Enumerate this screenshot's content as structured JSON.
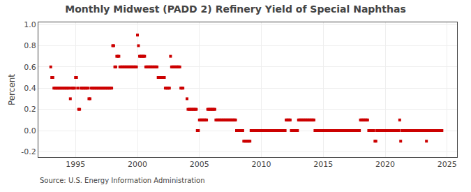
{
  "chart_data": {
    "type": "scatter",
    "title": "Monthly Midwest (PADD 2) Refinery Yield of Special Naphthas",
    "ylabel": "Percent",
    "annotations": [
      "Source: U.S. Energy Information Administration"
    ],
    "color": "#cc0000",
    "marker": "square",
    "grid": true,
    "xlim": [
      1992.0,
      2025.8
    ],
    "ylim": [
      -0.25,
      1.02
    ],
    "xticks": [
      1995,
      2000,
      2005,
      2010,
      2015,
      2020,
      2025
    ],
    "yticks": [
      -0.2,
      {
        "value": 0.0,
        "label": "0.0"
      },
      0.2,
      0.4,
      0.6,
      0.8,
      {
        "value": 1.0,
        "label": "1.0"
      }
    ],
    "x": [
      1993.0,
      1993.08,
      1993.17,
      1993.25,
      1993.33,
      1993.42,
      1993.5,
      1993.58,
      1993.67,
      1993.75,
      1993.83,
      1993.92,
      1994.0,
      1994.08,
      1994.17,
      1994.25,
      1994.33,
      1994.42,
      1994.5,
      1994.58,
      1994.67,
      1994.75,
      1994.83,
      1994.92,
      1995.0,
      1995.08,
      1995.17,
      1995.25,
      1995.33,
      1995.42,
      1995.5,
      1995.58,
      1995.67,
      1995.75,
      1995.83,
      1995.92,
      1996.0,
      1996.08,
      1996.17,
      1996.25,
      1996.33,
      1996.42,
      1996.5,
      1996.58,
      1996.67,
      1996.75,
      1996.83,
      1996.92,
      1997.0,
      1997.08,
      1997.17,
      1997.25,
      1997.33,
      1997.42,
      1997.5,
      1997.58,
      1997.67,
      1997.75,
      1997.83,
      1997.92,
      1998.0,
      1998.08,
      1998.17,
      1998.25,
      1998.33,
      1998.42,
      1998.5,
      1998.58,
      1998.67,
      1998.75,
      1998.83,
      1998.92,
      1999.0,
      1999.08,
      1999.17,
      1999.25,
      1999.33,
      1999.42,
      1999.5,
      1999.58,
      1999.67,
      1999.75,
      1999.83,
      1999.92,
      2000.0,
      2000.08,
      2000.17,
      2000.25,
      2000.33,
      2000.42,
      2000.5,
      2000.58,
      2000.67,
      2000.75,
      2000.83,
      2000.92,
      2001.0,
      2001.08,
      2001.17,
      2001.25,
      2001.33,
      2001.42,
      2001.5,
      2001.58,
      2001.67,
      2001.75,
      2001.83,
      2001.92,
      2002.0,
      2002.08,
      2002.17,
      2002.25,
      2002.33,
      2002.42,
      2002.5,
      2002.58,
      2002.67,
      2002.75,
      2002.83,
      2002.92,
      2003.0,
      2003.08,
      2003.17,
      2003.25,
      2003.33,
      2003.42,
      2003.5,
      2003.58,
      2003.67,
      2004.0,
      2004.08,
      2004.17,
      2004.25,
      2004.33,
      2004.42,
      2004.5,
      2004.58,
      2004.67,
      2004.75,
      2004.83,
      2004.92,
      2005.0,
      2005.08,
      2005.17,
      2005.25,
      2005.33,
      2005.42,
      2005.5,
      2005.58,
      2005.67,
      2005.75,
      2005.83,
      2005.92,
      2006.0,
      2006.08,
      2006.17,
      2006.25,
      2006.33,
      2006.42,
      2006.5,
      2006.58,
      2006.67,
      2006.75,
      2006.83,
      2006.92,
      2007.0,
      2007.08,
      2007.17,
      2007.25,
      2007.33,
      2007.42,
      2007.5,
      2007.58,
      2007.67,
      2007.75,
      2007.83,
      2007.92,
      2008.0,
      2008.08,
      2008.17,
      2008.25,
      2008.33,
      2008.42,
      2008.5,
      2008.58,
      2008.67,
      2008.75,
      2008.83,
      2008.92,
      2009.0,
      2009.08,
      2009.17,
      2009.25,
      2009.33,
      2009.42,
      2009.5,
      2009.58,
      2009.67,
      2009.75,
      2009.83,
      2009.92,
      2010.0,
      2010.08,
      2010.17,
      2010.25,
      2010.33,
      2010.42,
      2010.5,
      2010.58,
      2010.67,
      2010.75,
      2010.83,
      2010.92,
      2011.0,
      2011.08,
      2011.17,
      2011.25,
      2011.33,
      2011.42,
      2011.5,
      2011.58,
      2011.67,
      2011.75,
      2011.83,
      2011.92,
      2012.0,
      2012.08,
      2012.17,
      2012.25,
      2012.33,
      2012.42,
      2012.5,
      2012.58,
      2012.67,
      2012.75,
      2012.83,
      2012.92,
      2013.0,
      2013.08,
      2013.17,
      2013.25,
      2013.33,
      2013.42,
      2013.5,
      2013.58,
      2013.67,
      2013.75,
      2013.83,
      2013.92,
      2014.0,
      2014.08,
      2014.17,
      2014.25,
      2014.33,
      2014.42,
      2014.5,
      2014.58,
      2014.67,
      2014.75,
      2014.83,
      2014.92,
      2015.0,
      2015.08,
      2015.17,
      2015.25,
      2015.33,
      2015.42,
      2015.5,
      2015.58,
      2015.67,
      2015.75,
      2015.83,
      2015.92,
      2016.0,
      2016.08,
      2016.17,
      2016.25,
      2016.33,
      2016.42,
      2016.5,
      2016.58,
      2016.67,
      2016.75,
      2016.83,
      2016.92,
      2017.0,
      2017.08,
      2017.17,
      2017.25,
      2017.33,
      2017.42,
      2017.5,
      2017.58,
      2017.67,
      2017.75,
      2017.83,
      2017.92,
      2018.0,
      2018.08,
      2018.17,
      2018.25,
      2018.33,
      2018.42,
      2018.5,
      2018.58,
      2018.67,
      2018.75,
      2018.83,
      2018.92,
      2019.0,
      2019.08,
      2019.17,
      2019.25,
      2019.33,
      2019.42,
      2019.5,
      2019.58,
      2019.67,
      2019.75,
      2019.83,
      2019.92,
      2020.0,
      2020.08,
      2020.17,
      2020.25,
      2020.33,
      2020.42,
      2020.5,
      2020.58,
      2020.67,
      2020.75,
      2020.83,
      2020.92,
      2021.0,
      2021.08,
      2021.17,
      2021.25,
      2021.33,
      2021.42,
      2021.5,
      2021.58,
      2021.67,
      2021.75,
      2021.83,
      2021.92,
      2022.0,
      2022.08,
      2022.17,
      2022.25,
      2022.33,
      2022.42,
      2022.5,
      2022.58,
      2022.67,
      2022.75,
      2022.83,
      2022.92,
      2023.0,
      2023.08,
      2023.17,
      2023.25,
      2023.33,
      2023.42,
      2023.5,
      2023.58,
      2023.67,
      2023.75,
      2023.83,
      2023.92,
      2024.0,
      2024.08,
      2024.17,
      2024.25,
      2024.33,
      2024.42,
      2024.5,
      2024.58
    ],
    "values": [
      0.6,
      0.5,
      0.5,
      0.4,
      0.4,
      0.4,
      0.4,
      0.4,
      0.4,
      0.4,
      0.4,
      0.4,
      0.4,
      0.4,
      0.4,
      0.4,
      0.4,
      0.4,
      0.4,
      0.3,
      0.4,
      0.4,
      0.4,
      0.4,
      0.5,
      0.5,
      0.4,
      0.2,
      0.2,
      0.4,
      0.4,
      0.4,
      0.4,
      0.4,
      0.4,
      0.4,
      0.4,
      0.3,
      0.3,
      0.4,
      0.4,
      0.4,
      0.4,
      0.4,
      0.4,
      0.4,
      0.4,
      0.4,
      0.4,
      0.4,
      0.4,
      0.4,
      0.4,
      0.4,
      0.4,
      0.4,
      0.4,
      0.4,
      0.4,
      0.4,
      0.8,
      0.8,
      0.6,
      0.6,
      0.7,
      0.7,
      0.7,
      0.6,
      0.6,
      0.6,
      0.6,
      0.6,
      0.6,
      0.6,
      0.6,
      0.6,
      0.6,
      0.6,
      0.6,
      0.6,
      0.6,
      0.6,
      0.6,
      0.6,
      0.9,
      0.8,
      0.7,
      0.7,
      0.7,
      0.7,
      0.7,
      0.7,
      0.6,
      0.6,
      0.6,
      0.6,
      0.6,
      0.6,
      0.6,
      0.6,
      0.6,
      0.6,
      0.6,
      0.6,
      0.5,
      0.5,
      0.5,
      0.5,
      0.5,
      0.5,
      0.5,
      0.4,
      0.4,
      0.4,
      0.4,
      0.4,
      0.7,
      0.6,
      0.6,
      0.6,
      0.6,
      0.6,
      0.6,
      0.6,
      0.6,
      0.6,
      0.4,
      0.4,
      0.4,
      0.3,
      0.2,
      0.2,
      0.2,
      0.2,
      0.2,
      0.2,
      0.2,
      0.2,
      0.2,
      0.0,
      0.0,
      0.1,
      0.1,
      0.1,
      0.1,
      0.1,
      0.1,
      0.1,
      0.1,
      0.2,
      0.2,
      0.2,
      0.2,
      0.2,
      0.2,
      0.2,
      0.2,
      0.1,
      0.1,
      0.1,
      0.1,
      0.1,
      0.1,
      0.1,
      0.1,
      0.1,
      0.1,
      0.1,
      0.1,
      0.1,
      0.1,
      0.1,
      0.1,
      0.1,
      0.1,
      0.1,
      0.1,
      0.0,
      0.0,
      0.0,
      0.0,
      0.0,
      0.0,
      0.0,
      -0.1,
      -0.1,
      -0.1,
      -0.1,
      -0.1,
      -0.1,
      -0.1,
      0.0,
      0.0,
      0.0,
      0.0,
      0.0,
      0.0,
      0.0,
      0.0,
      0.0,
      0.0,
      0.0,
      0.0,
      0.0,
      0.0,
      0.0,
      0.0,
      0.0,
      0.0,
      0.0,
      0.0,
      0.0,
      0.0,
      0.0,
      0.0,
      0.0,
      0.0,
      0.0,
      0.0,
      0.0,
      0.0,
      0.0,
      0.0,
      0.0,
      0.0,
      0.1,
      0.1,
      0.1,
      0.1,
      0.1,
      0.0,
      0.0,
      0.0,
      0.0,
      0.0,
      0.0,
      0.0,
      0.1,
      0.1,
      0.1,
      0.1,
      0.1,
      0.1,
      0.1,
      0.1,
      0.1,
      0.1,
      0.1,
      0.1,
      0.1,
      0.1,
      0.1,
      0.1,
      0.0,
      0.0,
      0.0,
      0.0,
      0.0,
      0.0,
      0.0,
      0.0,
      0.0,
      0.0,
      0.0,
      0.0,
      0.0,
      0.0,
      0.0,
      0.0,
      0.0,
      0.0,
      0.0,
      0.0,
      0.0,
      0.0,
      0.0,
      0.0,
      0.0,
      0.0,
      0.0,
      0.0,
      0.0,
      0.0,
      0.0,
      0.0,
      0.0,
      0.0,
      0.0,
      0.0,
      0.0,
      0.0,
      0.0,
      0.0,
      0.0,
      0.0,
      0.0,
      0.0,
      0.1,
      0.1,
      0.1,
      0.1,
      0.1,
      0.1,
      0.1,
      0.1,
      0.0,
      0.0,
      0.0,
      0.0,
      0.0,
      0.0,
      -0.1,
      -0.1,
      0.0,
      0.0,
      0.0,
      0.0,
      0.0,
      0.0,
      0.0,
      0.0,
      0.0,
      0.0,
      0.0,
      0.0,
      0.0,
      0.0,
      0.0,
      0.0,
      0.0,
      0.0,
      0.0,
      0.0,
      0.0,
      0.0,
      0.1,
      -0.1,
      0.0,
      0.0,
      0.0,
      0.0,
      0.0,
      0.0,
      0.0,
      0.0,
      0.0,
      0.0,
      0.0,
      0.0,
      0.0,
      0.0,
      0.0,
      0.0,
      0.0,
      0.0,
      0.0,
      0.0,
      0.0,
      0.0,
      0.0,
      0.0,
      -0.1,
      0.0,
      0.0,
      0.0,
      0.0,
      0.0,
      0.0,
      0.0,
      0.0,
      0.0,
      0.0,
      0.0,
      0.0,
      0.0,
      0.0,
      0.0
    ]
  }
}
